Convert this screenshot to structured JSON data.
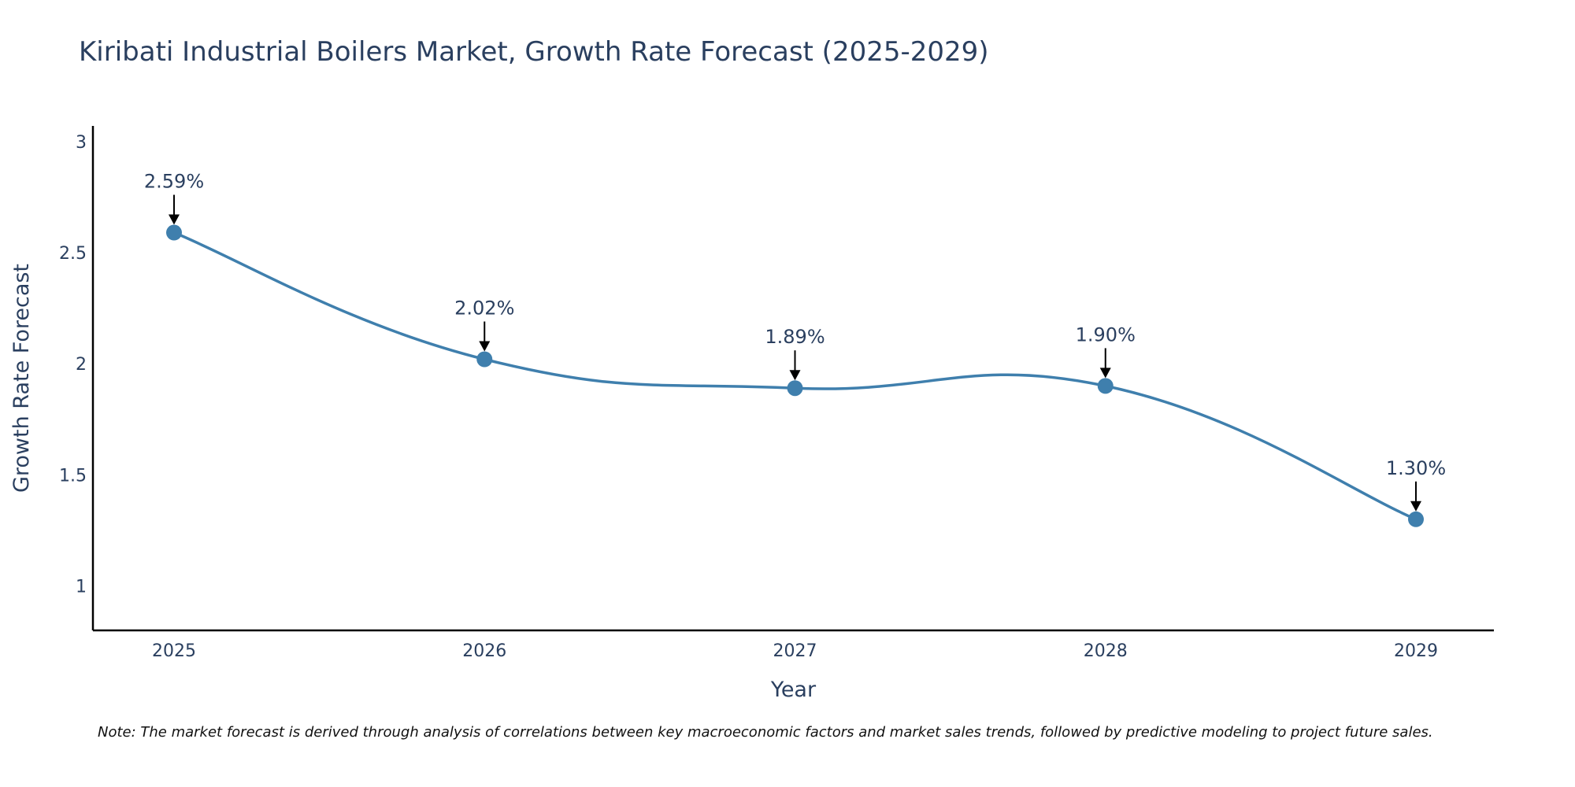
{
  "chart_data": {
    "type": "line",
    "title": "Kiribati Industrial Boilers Market, Growth Rate Forecast (2025-2029)",
    "xlabel": "Year",
    "ylabel": "Growth Rate Forecast",
    "categories": [
      "2025",
      "2026",
      "2027",
      "2028",
      "2029"
    ],
    "series": [
      {
        "name": "Growth Rate Forecast",
        "values": [
          2.59,
          2.02,
          1.89,
          1.9,
          1.3
        ]
      }
    ],
    "data_labels": [
      "2.59%",
      "2.02%",
      "1.89%",
      "1.90%",
      "1.30%"
    ],
    "ylim": [
      0.8,
      3.07
    ],
    "yticks": [
      1,
      1.5,
      2,
      2.5,
      3
    ],
    "ytick_labels": [
      "1",
      "1.5",
      "2",
      "2.5",
      "3"
    ],
    "grid": false,
    "line_color": "#3f7fad",
    "note": "Note: The market forecast is derived through analysis of correlations between key macroeconomic factors and market sales trends, followed by predictive modeling to project future sales."
  }
}
